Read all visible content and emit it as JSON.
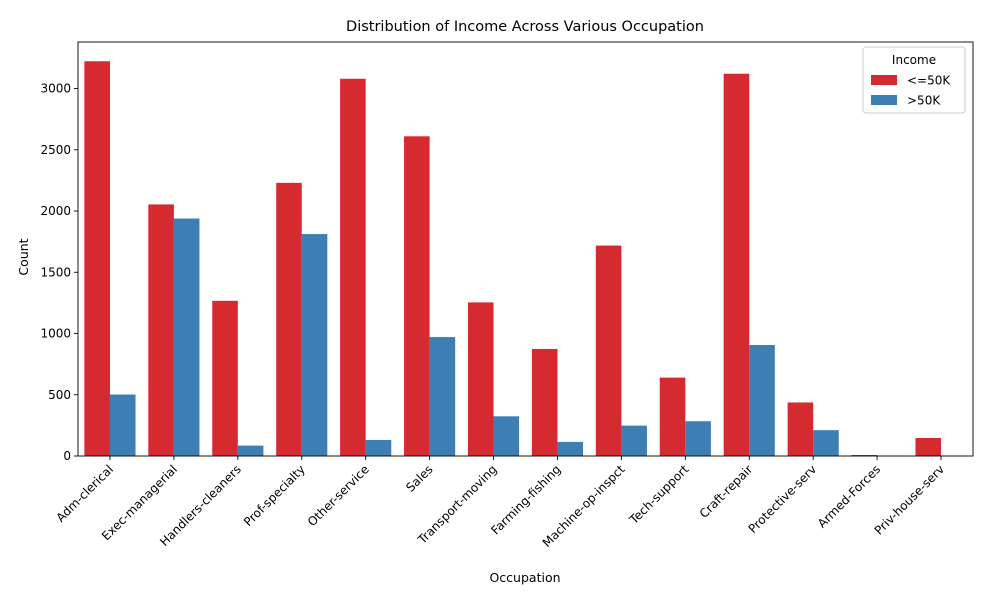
{
  "chart_data": {
    "type": "bar",
    "title": "Distribution of Income Across Various Occupation",
    "xlabel": "Occupation",
    "ylabel": "Count",
    "ylim": [
      0,
      3380
    ],
    "yticks": [
      0,
      500,
      1000,
      1500,
      2000,
      2500,
      3000
    ],
    "grid": false,
    "legend": {
      "title": "Income",
      "placement": "top-right"
    },
    "categories": [
      "Adm-clerical",
      "Exec-managerial",
      "Handlers-cleaners",
      "Prof-specialty",
      "Other-service",
      "Sales",
      "Transport-moving",
      "Farming-fishing",
      "Machine-op-inspct",
      "Tech-support",
      "Craft-repair",
      "Protective-serv",
      "Armed-Forces",
      "Priv-house-serv"
    ],
    "series": [
      {
        "name": "<=50K",
        "color": "#d62a31",
        "values": [
          3223,
          2054,
          1267,
          2230,
          3080,
          2610,
          1254,
          874,
          1718,
          640,
          3121,
          437,
          8,
          147
        ]
      },
      {
        "name": ">50K",
        "color": "#3d7fb5",
        "values": [
          502,
          1939,
          85,
          1812,
          131,
          971,
          324,
          115,
          248,
          284,
          906,
          211,
          1,
          1
        ]
      }
    ]
  }
}
